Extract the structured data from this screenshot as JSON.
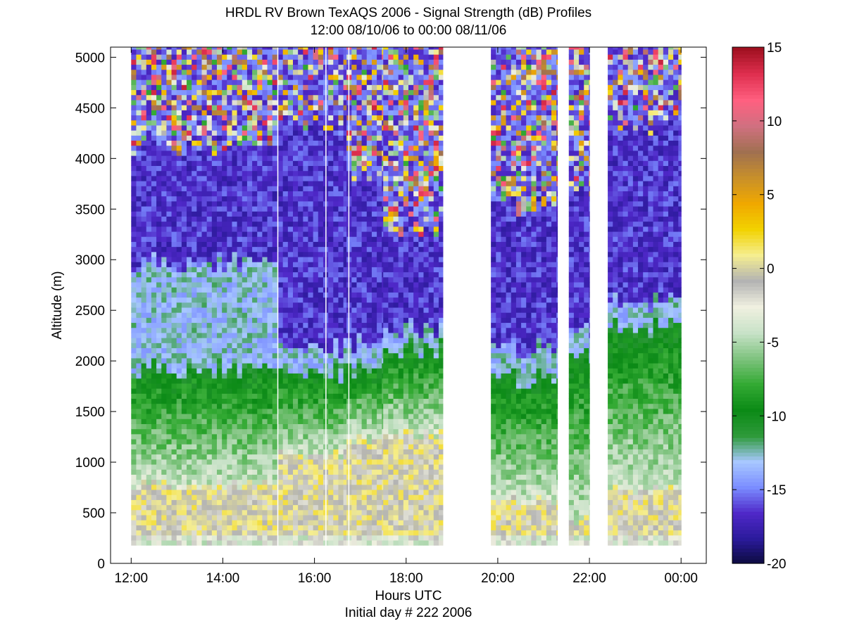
{
  "chart_data": {
    "type": "heatmap",
    "title": "HRDL RV Brown TexAQS 2006 - Signal Strength (dB) Profiles",
    "subtitle": "12:00 08/10/06 to 00:00 08/11/06",
    "xlabel": "Hours UTC",
    "xlabel2": "Initial day # 222  2006",
    "ylabel": "Altitude (m)",
    "x_ticks": [
      "12:00",
      "14:00",
      "16:00",
      "18:00",
      "20:00",
      "22:00",
      "00:00"
    ],
    "x_tick_hours": [
      12,
      14,
      16,
      18,
      20,
      22,
      24
    ],
    "xlim_hours": [
      11.55,
      24.55
    ],
    "y_ticks": [
      0,
      500,
      1000,
      1500,
      2000,
      2500,
      3000,
      3500,
      4000,
      4500,
      5000
    ],
    "ylim": [
      0,
      5100
    ],
    "colorbar": {
      "ticks": [
        15,
        10,
        5,
        0,
        -5,
        -10,
        -15,
        -20
      ],
      "range": [
        -20,
        15
      ],
      "units": "dB",
      "colors": [
        "#0b0a3a",
        "#2a1a9a",
        "#4f28c8",
        "#7a8cff",
        "#a8c8ff",
        "#2e9a3a",
        "#0b8a16",
        "#33aa33",
        "#7fc37f",
        "#c8e2c8",
        "#f0f0e0",
        "#b3b3b3",
        "#f5ee90",
        "#f2d200",
        "#f0a800",
        "#c8902a",
        "#a07050",
        "#d07080",
        "#ff6080",
        "#e03050",
        "#a01020"
      ]
    },
    "data_gaps_hours": [
      [
        18.8,
        19.85
      ],
      [
        21.3,
        21.55
      ],
      [
        22.0,
        22.4
      ]
    ],
    "profile_start_altitude_m": 180,
    "blocks": [
      {
        "h0": 12.0,
        "h1": 15.2,
        "max_alt": 5100,
        "bl_top": 750,
        "green_top": 1900,
        "mid_top": 2950,
        "cloud_low": 4100
      },
      {
        "h0": 15.2,
        "h1": 16.7,
        "max_alt": 5100,
        "bl_top": 1050,
        "green_top": 1850,
        "mid_top": 2100,
        "cloud_low": 4300
      },
      {
        "h0": 16.7,
        "h1": 17.5,
        "max_alt": 5100,
        "bl_top": 1200,
        "green_top": 1900,
        "mid_top": 2150,
        "cloud_low": 3800
      },
      {
        "h0": 17.5,
        "h1": 18.8,
        "max_alt": 5100,
        "bl_top": 1250,
        "green_top": 2100,
        "mid_top": 2300,
        "cloud_low": 3300
      },
      {
        "h0": 19.85,
        "h1": 21.3,
        "max_alt": 5100,
        "bl_top": 600,
        "green_top": 1800,
        "mid_top": 2100,
        "cloud_low": 3500
      },
      {
        "h0": 21.55,
        "h1": 22.0,
        "max_alt": 5100,
        "bl_top": 400,
        "green_top": 2050,
        "mid_top": 2300,
        "cloud_low": 3700
      },
      {
        "h0": 22.4,
        "h1": 24.0,
        "max_alt": 5100,
        "bl_top": 700,
        "green_top": 2300,
        "mid_top": 2550,
        "cloud_low": 4300
      }
    ]
  }
}
